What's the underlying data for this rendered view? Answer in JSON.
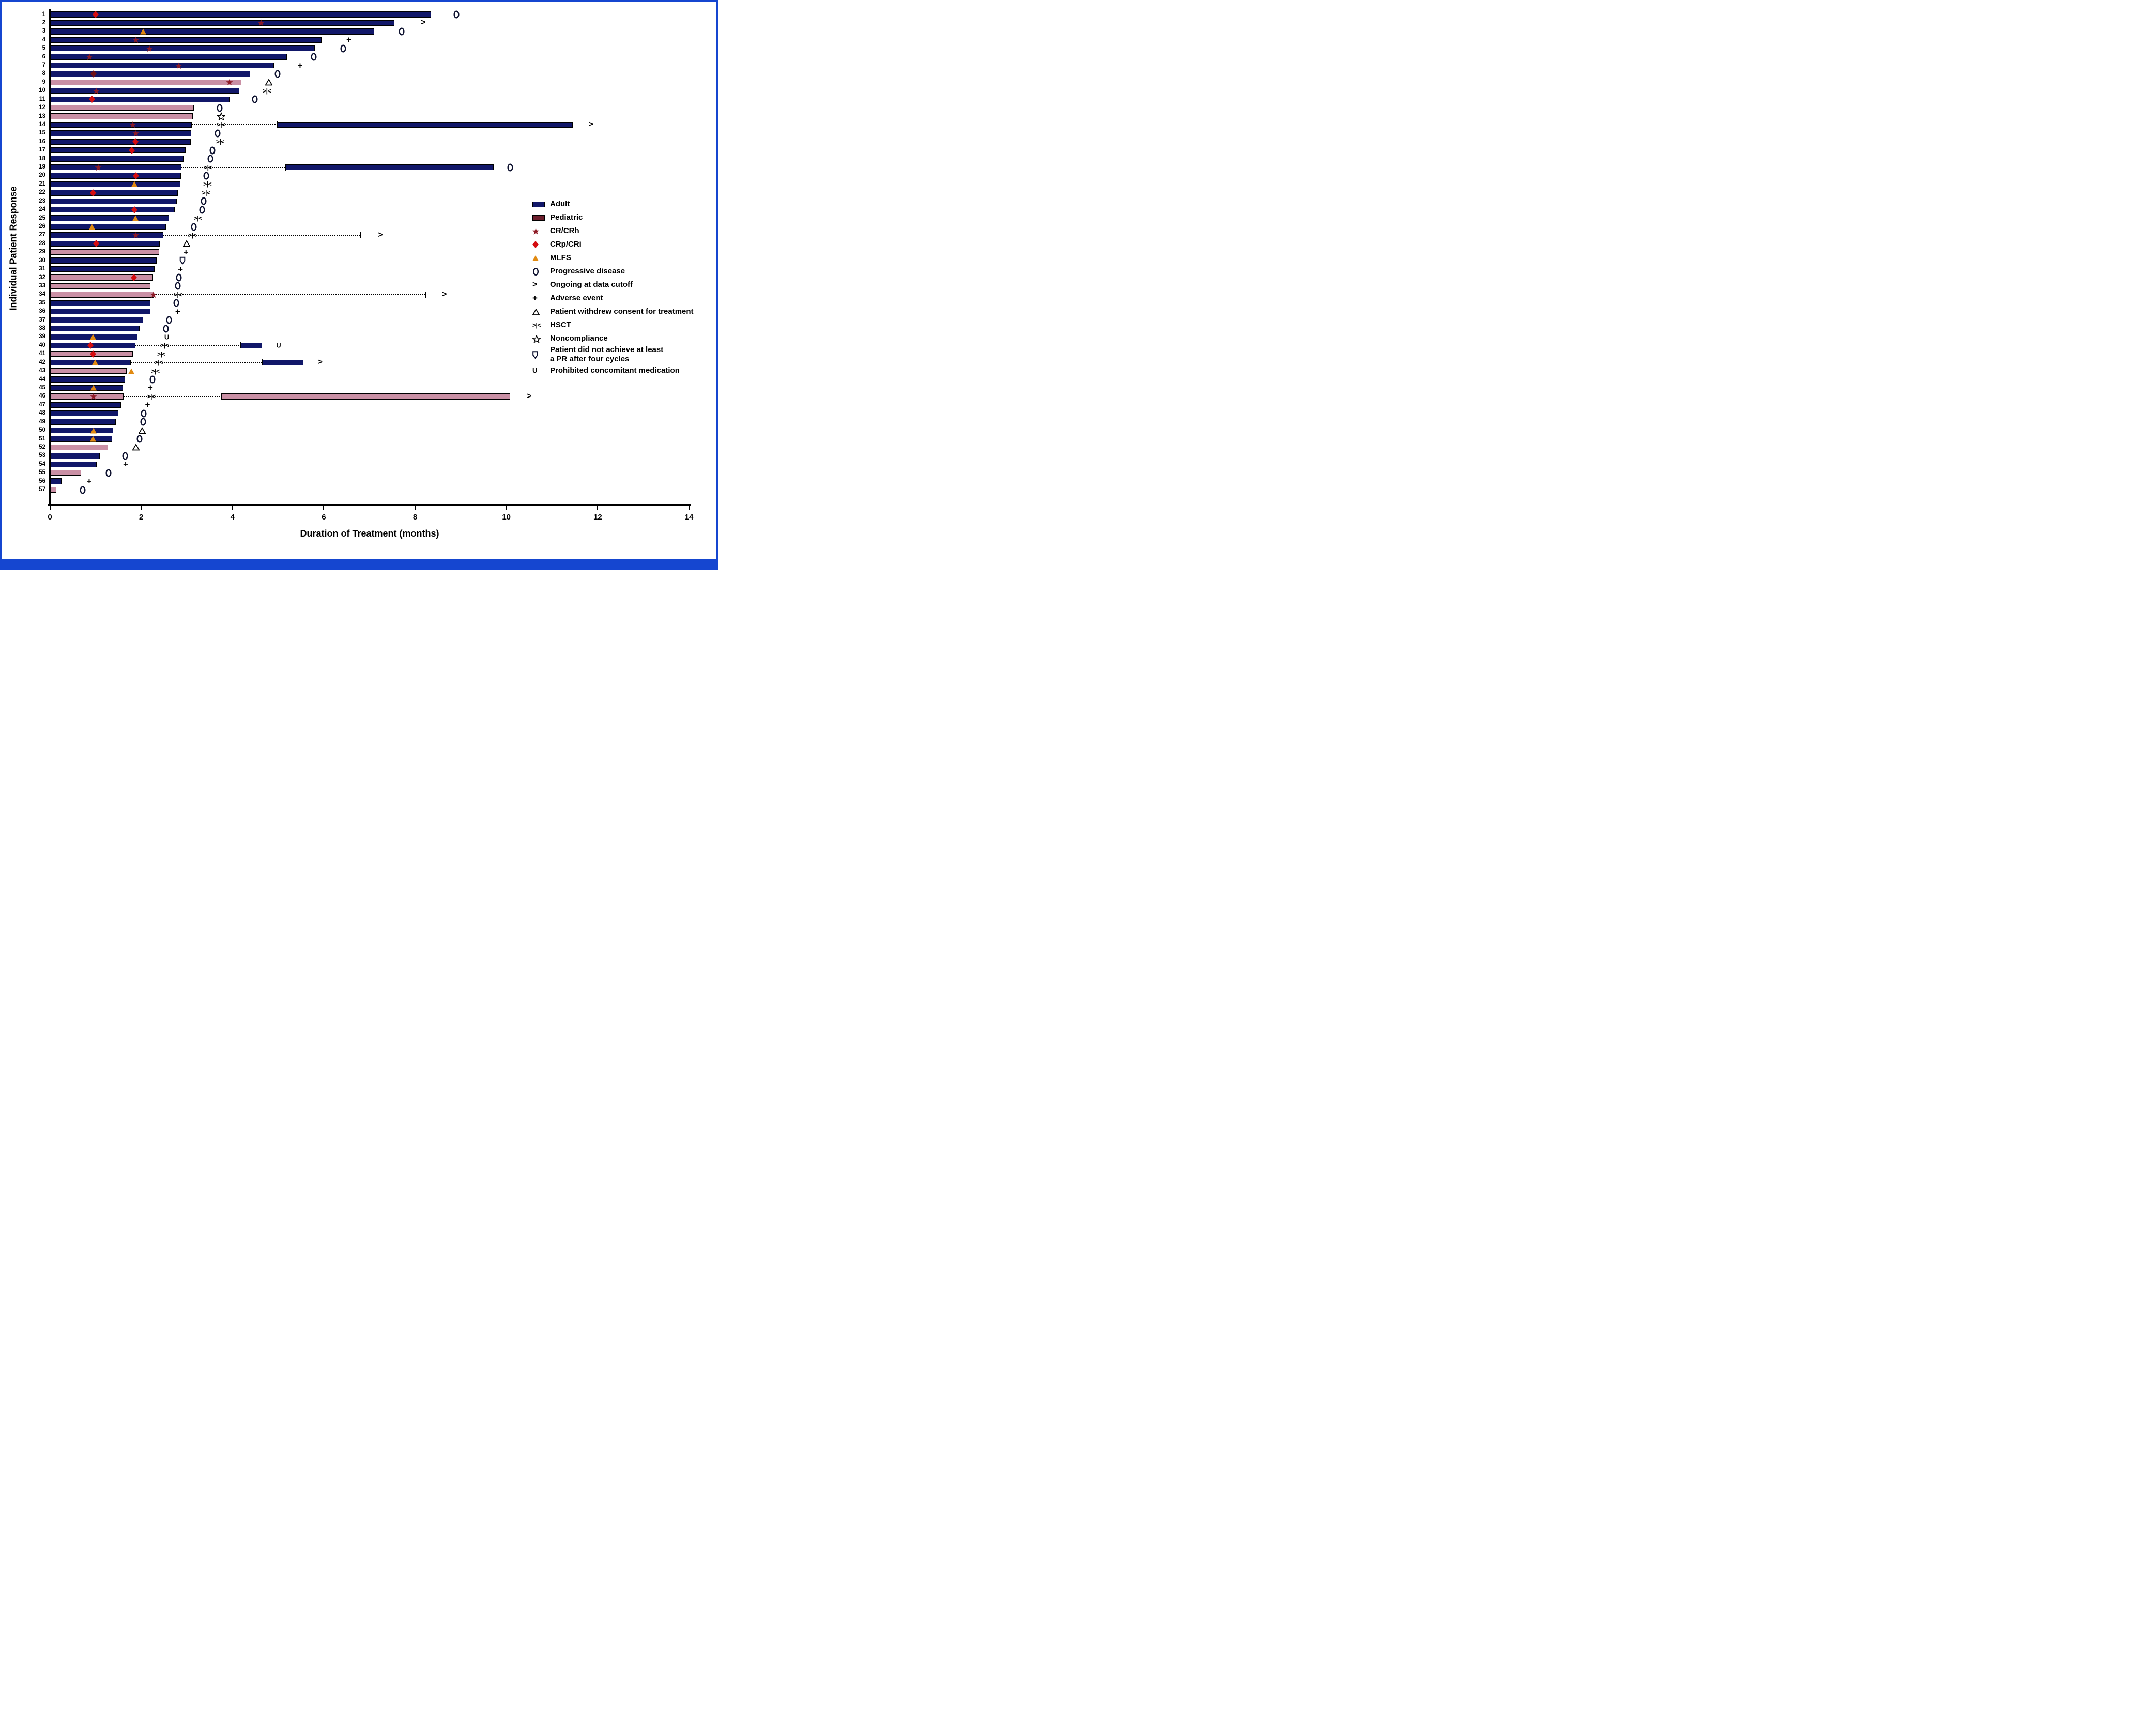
{
  "figure": {
    "y_axis_label": "Individual Patient Response",
    "x_axis_label": "Duration of Treatment (months)",
    "x_ticks": [
      0,
      2,
      4,
      6,
      8,
      10,
      12,
      14
    ],
    "x_max": 14
  },
  "colors": {
    "frame_blue": "#1546d0",
    "adult_bar": "#111769",
    "pediatric_bar": "#ca90a5",
    "pediatric_legend_swatch": "#6d1f2d",
    "cr_crh_star": "#8e1b26",
    "crp_cri_diamond": "#d40d10",
    "crp_cri_diamond_dark": "#6f1118",
    "mlfs_orange": "#e18a12",
    "open_marker_stroke": "#0c102e",
    "bar_outline": "#000000"
  },
  "legend": [
    {
      "marker": "adult",
      "label": "Adult"
    },
    {
      "marker": "pediatric",
      "label": "Pediatric"
    },
    {
      "marker": "cr_crh",
      "label": "CR/CRh"
    },
    {
      "marker": "crp_cri",
      "label": "CRp/CRi"
    },
    {
      "marker": "mlfs",
      "label": "MLFS"
    },
    {
      "marker": "progressive",
      "label": "Progressive disease"
    },
    {
      "marker": "ongoing",
      "label": "Ongoing at data cutoff"
    },
    {
      "marker": "ae",
      "label": "Adverse event"
    },
    {
      "marker": "withdrew",
      "label": "Patient withdrew consent for treatment"
    },
    {
      "marker": "hsct",
      "label": "HSCT"
    },
    {
      "marker": "noncompliance",
      "label": "Noncompliance"
    },
    {
      "marker": "no_pr",
      "label": "Patient did not achieve at least",
      "label2": "a PR after four cycles"
    },
    {
      "marker": "prohibited",
      "label": "Prohibited concomitant medication"
    }
  ],
  "chart_data": {
    "type": "bar",
    "orientation": "horizontal_swimmer",
    "title": "",
    "xlabel": "Duration of Treatment (months)",
    "ylabel": "Individual Patient Response",
    "xlim": [
      0,
      14
    ],
    "patients": [
      {
        "id": 1,
        "group": "adult",
        "end": 8.35,
        "seg2": null,
        "dot_to": null,
        "response": {
          "type": "crp_cri",
          "x": 1.0
        },
        "events": [
          {
            "type": "progressive",
            "x": 8.9
          }
        ]
      },
      {
        "id": 2,
        "group": "adult",
        "end": 7.55,
        "seg2": null,
        "dot_to": null,
        "response": {
          "type": "cr_crh",
          "x": 4.62
        },
        "events": [
          {
            "type": "ongoing",
            "x": 8.18
          }
        ]
      },
      {
        "id": 3,
        "group": "adult",
        "end": 7.1,
        "seg2": null,
        "dot_to": null,
        "response": {
          "type": "mlfs",
          "x": 2.04
        },
        "events": [
          {
            "type": "progressive",
            "x": 7.7
          }
        ]
      },
      {
        "id": 4,
        "group": "adult",
        "end": 5.95,
        "seg2": null,
        "dot_to": null,
        "response": {
          "type": "cr_crh",
          "x": 1.89
        },
        "events": [
          {
            "type": "ae",
            "x": 6.55
          }
        ]
      },
      {
        "id": 5,
        "group": "adult",
        "end": 5.8,
        "seg2": null,
        "dot_to": null,
        "response": {
          "type": "cr_crh",
          "x": 2.18
        },
        "events": [
          {
            "type": "progressive",
            "x": 6.42
          }
        ]
      },
      {
        "id": 6,
        "group": "adult",
        "end": 5.19,
        "seg2": null,
        "dot_to": null,
        "response": {
          "type": "cr_crh",
          "x": 0.87
        },
        "events": [
          {
            "type": "progressive",
            "x": 5.78
          }
        ]
      },
      {
        "id": 7,
        "group": "adult",
        "end": 4.91,
        "seg2": null,
        "dot_to": null,
        "response": {
          "type": "cr_crh",
          "x": 2.82
        },
        "events": [
          {
            "type": "ae",
            "x": 5.48
          }
        ]
      },
      {
        "id": 8,
        "group": "adult",
        "end": 4.39,
        "seg2": null,
        "dot_to": null,
        "response": {
          "type": "crp_cri_dark",
          "x": 0.96
        },
        "events": [
          {
            "type": "progressive",
            "x": 4.99
          }
        ]
      },
      {
        "id": 9,
        "group": "pediatric",
        "end": 4.2,
        "seg2": null,
        "dot_to": null,
        "response": {
          "type": "cr_crh",
          "x": 3.93
        },
        "events": [
          {
            "type": "withdrew",
            "x": 4.79
          }
        ]
      },
      {
        "id": 10,
        "group": "adult",
        "end": 4.15,
        "seg2": null,
        "dot_to": null,
        "response": {
          "type": "cr_crh",
          "x": 1.01
        },
        "events": [
          {
            "type": "hsct",
            "x": 4.75
          }
        ]
      },
      {
        "id": 11,
        "group": "adult",
        "end": 3.93,
        "seg2": null,
        "dot_to": null,
        "response": {
          "type": "crp_cri",
          "x": 0.92
        },
        "events": [
          {
            "type": "progressive",
            "x": 4.49
          }
        ]
      },
      {
        "id": 12,
        "group": "pediatric",
        "end": 3.15,
        "seg2": null,
        "dot_to": null,
        "response": null,
        "events": [
          {
            "type": "progressive",
            "x": 3.72
          }
        ]
      },
      {
        "id": 13,
        "group": "pediatric",
        "end": 3.13,
        "seg2": null,
        "dot_to": null,
        "response": null,
        "events": [
          {
            "type": "noncompliance",
            "x": 3.75
          }
        ]
      },
      {
        "id": 14,
        "group": "adult",
        "end": 3.11,
        "seg2": [
          4.99,
          11.45
        ],
        "dot_to": 4.99,
        "response": {
          "type": "cr_crh",
          "x": 1.82
        },
        "events": [
          {
            "type": "hsct",
            "x": 3.75
          },
          {
            "type": "ongoing",
            "x": 11.85
          }
        ]
      },
      {
        "id": 15,
        "group": "adult",
        "end": 3.1,
        "seg2": null,
        "dot_to": null,
        "response": {
          "type": "cr_crh",
          "x": 1.88
        },
        "events": [
          {
            "type": "progressive",
            "x": 3.67
          }
        ]
      },
      {
        "id": 16,
        "group": "adult",
        "end": 3.08,
        "seg2": null,
        "dot_to": null,
        "response": {
          "type": "crp_cri",
          "x": 1.87
        },
        "events": [
          {
            "type": "hsct",
            "x": 3.73
          }
        ]
      },
      {
        "id": 17,
        "group": "adult",
        "end": 2.97,
        "seg2": null,
        "dot_to": null,
        "response": {
          "type": "crp_cri",
          "x": 1.79
        },
        "events": [
          {
            "type": "progressive",
            "x": 3.56
          }
        ]
      },
      {
        "id": 18,
        "group": "adult",
        "end": 2.93,
        "seg2": null,
        "dot_to": null,
        "response": null,
        "events": [
          {
            "type": "progressive",
            "x": 3.52
          }
        ]
      },
      {
        "id": 19,
        "group": "adult",
        "end": 2.88,
        "seg2": [
          5.16,
          9.72
        ],
        "dot_to": 5.16,
        "response": {
          "type": "cr_crh",
          "x": 1.06
        },
        "events": [
          {
            "type": "hsct",
            "x": 3.46
          },
          {
            "type": "progressive",
            "x": 10.08
          }
        ]
      },
      {
        "id": 20,
        "group": "adult",
        "end": 2.87,
        "seg2": null,
        "dot_to": null,
        "response": {
          "type": "crp_cri",
          "x": 1.88
        },
        "events": [
          {
            "type": "progressive",
            "x": 3.43
          }
        ]
      },
      {
        "id": 21,
        "group": "adult",
        "end": 2.86,
        "seg2": null,
        "dot_to": null,
        "response": {
          "type": "mlfs",
          "x": 1.85
        },
        "events": [
          {
            "type": "hsct",
            "x": 3.45
          }
        ]
      },
      {
        "id": 22,
        "group": "adult",
        "end": 2.8,
        "seg2": null,
        "dot_to": null,
        "response": {
          "type": "crp_cri",
          "x": 0.94
        },
        "events": [
          {
            "type": "hsct",
            "x": 3.42
          }
        ]
      },
      {
        "id": 23,
        "group": "adult",
        "end": 2.78,
        "seg2": null,
        "dot_to": null,
        "response": null,
        "events": [
          {
            "type": "progressive",
            "x": 3.37
          }
        ]
      },
      {
        "id": 24,
        "group": "adult",
        "end": 2.74,
        "seg2": null,
        "dot_to": null,
        "response": {
          "type": "crp_cri",
          "x": 1.85
        },
        "events": [
          {
            "type": "progressive",
            "x": 3.34
          }
        ]
      },
      {
        "id": 25,
        "group": "adult",
        "end": 2.61,
        "seg2": null,
        "dot_to": null,
        "response": {
          "type": "mlfs",
          "x": 1.87
        },
        "events": [
          {
            "type": "hsct",
            "x": 3.24
          }
        ]
      },
      {
        "id": 26,
        "group": "adult",
        "end": 2.54,
        "seg2": null,
        "dot_to": null,
        "response": {
          "type": "mlfs",
          "x": 0.92
        },
        "events": [
          {
            "type": "progressive",
            "x": 3.15
          }
        ]
      },
      {
        "id": 27,
        "group": "adult",
        "end": 2.49,
        "seg2": null,
        "dot_to": 6.8,
        "response": {
          "type": "cr_crh",
          "x": 1.88
        },
        "events": [
          {
            "type": "hsct",
            "x": 3.12
          },
          {
            "type": "ongoing",
            "x": 7.24
          }
        ]
      },
      {
        "id": 28,
        "group": "adult",
        "end": 2.41,
        "seg2": null,
        "dot_to": null,
        "response": {
          "type": "crp_cri",
          "x": 1.01
        },
        "events": [
          {
            "type": "withdrew",
            "x": 3.0
          }
        ]
      },
      {
        "id": 29,
        "group": "pediatric",
        "end": 2.39,
        "seg2": null,
        "dot_to": null,
        "response": null,
        "events": [
          {
            "type": "ae",
            "x": 2.98
          }
        ]
      },
      {
        "id": 30,
        "group": "adult",
        "end": 2.34,
        "seg2": null,
        "dot_to": null,
        "response": null,
        "events": [
          {
            "type": "no_pr",
            "x": 2.9
          }
        ]
      },
      {
        "id": 31,
        "group": "adult",
        "end": 2.29,
        "seg2": null,
        "dot_to": null,
        "response": null,
        "events": [
          {
            "type": "ae",
            "x": 2.86
          }
        ]
      },
      {
        "id": 32,
        "group": "pediatric",
        "end": 2.26,
        "seg2": null,
        "dot_to": null,
        "response": {
          "type": "crp_cri",
          "x": 1.84
        },
        "events": [
          {
            "type": "progressive",
            "x": 2.83
          }
        ]
      },
      {
        "id": 33,
        "group": "pediatric",
        "end": 2.2,
        "seg2": null,
        "dot_to": null,
        "response": null,
        "events": [
          {
            "type": "progressive",
            "x": 2.8
          }
        ]
      },
      {
        "id": 34,
        "group": "pediatric",
        "end": 2.28,
        "seg2": null,
        "dot_to": 8.23,
        "response": {
          "type": "cr_crh",
          "x": 2.27
        },
        "events": [
          {
            "type": "hsct",
            "x": 2.8
          },
          {
            "type": "ongoing",
            "x": 8.64
          }
        ]
      },
      {
        "id": 35,
        "group": "adult",
        "end": 2.2,
        "seg2": null,
        "dot_to": null,
        "response": null,
        "events": [
          {
            "type": "progressive",
            "x": 2.77
          }
        ]
      },
      {
        "id": 36,
        "group": "adult",
        "end": 2.2,
        "seg2": null,
        "dot_to": null,
        "response": null,
        "events": [
          {
            "type": "ae",
            "x": 2.8
          }
        ]
      },
      {
        "id": 37,
        "group": "adult",
        "end": 2.04,
        "seg2": null,
        "dot_to": null,
        "response": null,
        "events": [
          {
            "type": "progressive",
            "x": 2.61
          }
        ]
      },
      {
        "id": 38,
        "group": "adult",
        "end": 1.97,
        "seg2": null,
        "dot_to": null,
        "response": null,
        "events": [
          {
            "type": "progressive",
            "x": 2.54
          }
        ]
      },
      {
        "id": 39,
        "group": "adult",
        "end": 1.92,
        "seg2": null,
        "dot_to": null,
        "response": {
          "type": "mlfs",
          "x": 0.94
        },
        "events": [
          {
            "type": "prohibited",
            "x": 2.56
          }
        ]
      },
      {
        "id": 40,
        "group": "adult",
        "end": 1.87,
        "seg2": [
          4.18,
          4.65
        ],
        "dot_to": 4.18,
        "response": {
          "type": "crp_cri",
          "x": 0.89
        },
        "events": [
          {
            "type": "hsct",
            "x": 2.51
          },
          {
            "type": "prohibited",
            "x": 5.01
          }
        ]
      },
      {
        "id": 41,
        "group": "pediatric",
        "end": 1.82,
        "seg2": null,
        "dot_to": null,
        "response": {
          "type": "crp_cri",
          "x": 0.94
        },
        "events": [
          {
            "type": "hsct",
            "x": 2.44
          }
        ]
      },
      {
        "id": 42,
        "group": "adult",
        "end": 1.77,
        "seg2": [
          4.65,
          5.55
        ],
        "dot_to": 4.65,
        "response": {
          "type": "mlfs",
          "x": 0.99
        },
        "events": [
          {
            "type": "hsct",
            "x": 2.38
          },
          {
            "type": "ongoing",
            "x": 5.92
          }
        ]
      },
      {
        "id": 43,
        "group": "pediatric",
        "end": 1.68,
        "seg2": null,
        "dot_to": null,
        "response": {
          "type": "mlfs",
          "x": 1.78
        },
        "events": [
          {
            "type": "hsct",
            "x": 2.31
          }
        ]
      },
      {
        "id": 44,
        "group": "adult",
        "end": 1.65,
        "seg2": null,
        "dot_to": null,
        "response": null,
        "events": [
          {
            "type": "progressive",
            "x": 2.25
          }
        ]
      },
      {
        "id": 45,
        "group": "adult",
        "end": 1.6,
        "seg2": null,
        "dot_to": null,
        "response": {
          "type": "mlfs",
          "x": 0.96
        },
        "events": [
          {
            "type": "ae",
            "x": 2.2
          }
        ]
      },
      {
        "id": 46,
        "group": "pediatric",
        "end": 1.61,
        "seg2": [
          3.76,
          10.08
        ],
        "dot_to": 3.76,
        "response": {
          "type": "cr_crh",
          "x": 0.96
        },
        "events": [
          {
            "type": "hsct",
            "x": 2.22
          },
          {
            "type": "ongoing",
            "x": 10.5
          }
        ]
      },
      {
        "id": 47,
        "group": "adult",
        "end": 1.56,
        "seg2": null,
        "dot_to": null,
        "response": null,
        "events": [
          {
            "type": "ae",
            "x": 2.14
          }
        ]
      },
      {
        "id": 48,
        "group": "adult",
        "end": 1.5,
        "seg2": null,
        "dot_to": null,
        "response": null,
        "events": [
          {
            "type": "progressive",
            "x": 2.05
          }
        ]
      },
      {
        "id": 49,
        "group": "adult",
        "end": 1.44,
        "seg2": null,
        "dot_to": null,
        "response": null,
        "events": [
          {
            "type": "progressive",
            "x": 2.04
          }
        ]
      },
      {
        "id": 50,
        "group": "adult",
        "end": 1.39,
        "seg2": null,
        "dot_to": null,
        "response": {
          "type": "mlfs",
          "x": 0.96
        },
        "events": [
          {
            "type": "withdrew",
            "x": 2.02
          }
        ]
      },
      {
        "id": 51,
        "group": "adult",
        "end": 1.36,
        "seg2": null,
        "dot_to": null,
        "response": {
          "type": "mlfs",
          "x": 0.95
        },
        "events": [
          {
            "type": "progressive",
            "x": 1.97
          }
        ]
      },
      {
        "id": 52,
        "group": "pediatric",
        "end": 1.27,
        "seg2": null,
        "dot_to": null,
        "response": null,
        "events": [
          {
            "type": "withdrew",
            "x": 1.88
          }
        ]
      },
      {
        "id": 53,
        "group": "adult",
        "end": 1.09,
        "seg2": null,
        "dot_to": null,
        "response": null,
        "events": [
          {
            "type": "progressive",
            "x": 1.65
          }
        ]
      },
      {
        "id": 54,
        "group": "adult",
        "end": 1.03,
        "seg2": null,
        "dot_to": null,
        "response": null,
        "events": [
          {
            "type": "ae",
            "x": 1.66
          }
        ]
      },
      {
        "id": 55,
        "group": "pediatric",
        "end": 0.69,
        "seg2": null,
        "dot_to": null,
        "response": null,
        "events": [
          {
            "type": "progressive",
            "x": 1.28
          }
        ]
      },
      {
        "id": 56,
        "group": "adult",
        "end": 0.26,
        "seg2": null,
        "dot_to": null,
        "response": null,
        "events": [
          {
            "type": "ae",
            "x": 0.86
          }
        ]
      },
      {
        "id": 57,
        "group": "pediatric",
        "end": 0.14,
        "seg2": null,
        "dot_to": null,
        "response": null,
        "events": [
          {
            "type": "progressive",
            "x": 0.72
          }
        ]
      }
    ]
  }
}
